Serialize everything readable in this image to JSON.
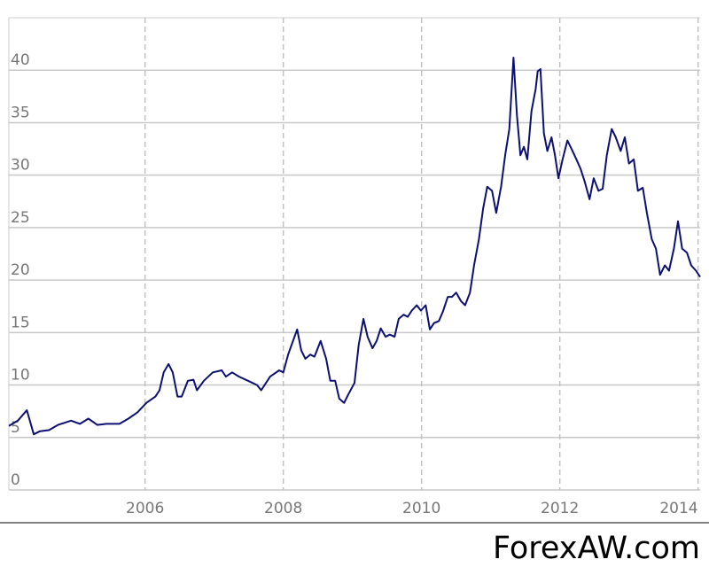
{
  "chart_data": {
    "type": "line",
    "watermark": "ForexAW.com",
    "xlim": [
      2004.03,
      2014.03
    ],
    "ylim": [
      0,
      45
    ],
    "xticks": [
      2006,
      2008,
      2010,
      2012,
      2014
    ],
    "yticks": [
      0,
      5,
      10,
      15,
      20,
      25,
      30,
      35,
      40
    ],
    "grid": true,
    "series": [
      {
        "color": "#0c1070",
        "x": [
          2004.03,
          2004.16,
          2004.29,
          2004.39,
          2004.48,
          2004.61,
          2004.74,
          2004.93,
          2005.06,
          2005.18,
          2005.31,
          2005.44,
          2005.63,
          2005.76,
          2005.89,
          2006.02,
          2006.15,
          2006.21,
          2006.27,
          2006.34,
          2006.4,
          2006.47,
          2006.53,
          2006.62,
          2006.7,
          2006.75,
          2006.85,
          2006.98,
          2007.11,
          2007.17,
          2007.26,
          2007.36,
          2007.49,
          2007.62,
          2007.68,
          2007.81,
          2007.94,
          2008.0,
          2008.07,
          2008.2,
          2008.26,
          2008.32,
          2008.39,
          2008.45,
          2008.54,
          2008.62,
          2008.68,
          2008.75,
          2008.81,
          2008.88,
          2008.94,
          2009.03,
          2009.09,
          2009.16,
          2009.22,
          2009.29,
          2009.35,
          2009.41,
          2009.48,
          2009.54,
          2009.61,
          2009.67,
          2009.74,
          2009.8,
          2009.86,
          2009.93,
          2009.99,
          2010.06,
          2010.12,
          2010.18,
          2010.25,
          2010.31,
          2010.38,
          2010.44,
          2010.5,
          2010.57,
          2010.63,
          2010.7,
          2010.76,
          2010.83,
          2010.89,
          2010.95,
          2011.02,
          2011.08,
          2011.15,
          2011.21,
          2011.27,
          2011.33,
          2011.38,
          2011.43,
          2011.48,
          2011.53,
          2011.59,
          2011.65,
          2011.68,
          2011.72,
          2011.77,
          2011.82,
          2011.88,
          2011.93,
          2011.98,
          2012.04,
          2012.11,
          2012.17,
          2012.24,
          2012.3,
          2012.36,
          2012.43,
          2012.49,
          2012.56,
          2012.62,
          2012.68,
          2012.75,
          2012.81,
          2012.88,
          2012.94,
          2013.0,
          2013.07,
          2013.13,
          2013.2,
          2013.26,
          2013.33,
          2013.39,
          2013.45,
          2013.52,
          2013.58,
          2013.65,
          2013.71,
          2013.77,
          2013.84,
          2013.9,
          2013.97,
          2014.03
        ],
        "values": [
          6.1,
          6.6,
          7.6,
          5.3,
          5.6,
          5.7,
          6.2,
          6.6,
          6.3,
          6.8,
          6.2,
          6.3,
          6.3,
          6.8,
          7.4,
          8.3,
          8.9,
          9.5,
          11.2,
          12.0,
          11.2,
          8.9,
          8.9,
          10.4,
          10.5,
          9.5,
          10.4,
          11.2,
          11.4,
          10.8,
          11.2,
          10.8,
          10.4,
          10.0,
          9.5,
          10.8,
          11.4,
          11.2,
          12.9,
          15.3,
          13.3,
          12.5,
          12.9,
          12.7,
          14.2,
          12.5,
          10.4,
          10.4,
          8.7,
          8.3,
          9.1,
          10.2,
          13.8,
          16.3,
          14.6,
          13.5,
          14.2,
          15.4,
          14.6,
          14.8,
          14.6,
          16.3,
          16.7,
          16.5,
          17.1,
          17.6,
          17.1,
          17.6,
          15.3,
          15.9,
          16.1,
          17.0,
          18.4,
          18.4,
          18.8,
          18.0,
          17.6,
          18.8,
          21.4,
          23.9,
          26.8,
          28.9,
          28.5,
          26.4,
          28.9,
          31.9,
          34.4,
          41.2,
          35.7,
          31.9,
          32.7,
          31.5,
          36.1,
          38.2,
          39.9,
          40.1,
          34.0,
          32.3,
          33.6,
          31.9,
          29.7,
          31.5,
          33.3,
          32.5,
          31.5,
          30.6,
          29.4,
          27.7,
          29.7,
          28.5,
          28.7,
          31.9,
          34.4,
          33.6,
          32.3,
          33.6,
          31.1,
          31.5,
          28.5,
          28.8,
          26.4,
          23.9,
          23.0,
          20.5,
          21.4,
          20.9,
          23.0,
          25.6,
          23.0,
          22.6,
          21.4,
          20.9,
          20.3
        ]
      }
    ]
  }
}
